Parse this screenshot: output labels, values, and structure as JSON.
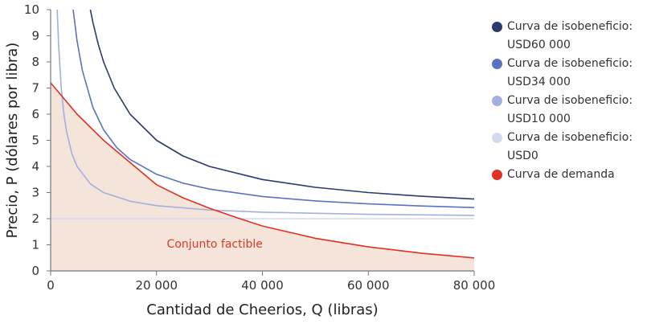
{
  "chart_data": {
    "type": "line",
    "xlabel": "Cantidad de Cheerios, Q (libras)",
    "ylabel": "Precio, P (dólares por libra)",
    "xlim": [
      0,
      80000
    ],
    "ylim": [
      0,
      10
    ],
    "x_ticks": [
      0,
      20000,
      40000,
      60000,
      80000
    ],
    "x_tick_labels": [
      "0",
      "20 000",
      "40 000",
      "60 000",
      "80 000"
    ],
    "y_ticks": [
      0,
      1,
      2,
      3,
      4,
      5,
      6,
      7,
      8,
      9,
      10
    ],
    "y_tick_labels": [
      "0",
      "1",
      "2",
      "3",
      "4",
      "5",
      "6",
      "7",
      "8",
      "9",
      "10"
    ],
    "grid": false,
    "legend_placement": "right",
    "annotation": "Conjunto factible",
    "feasible_fill_color": "#f5e4da",
    "series": [
      {
        "name": "Curva de isobeneficio: USD60 000",
        "legend_lines": [
          "Curva de isobeneficio:",
          "USD60 000"
        ],
        "color": "#2a3a6c",
        "points": [
          [
            7500,
            10
          ],
          [
            8000,
            9.5
          ],
          [
            9000,
            8.667
          ],
          [
            10000,
            8
          ],
          [
            12000,
            7
          ],
          [
            15000,
            6
          ],
          [
            20000,
            5
          ],
          [
            25000,
            4.4
          ],
          [
            30000,
            4
          ],
          [
            40000,
            3.5
          ],
          [
            50000,
            3.2
          ],
          [
            60000,
            3
          ],
          [
            70000,
            2.857
          ],
          [
            80000,
            2.75
          ]
        ]
      },
      {
        "name": "Curva de isobeneficio: USD34 000",
        "legend_lines": [
          "Curva de isobeneficio:",
          "USD34 000"
        ],
        "color": "#5a72c0",
        "points": [
          [
            4250,
            10
          ],
          [
            5000,
            8.8
          ],
          [
            6000,
            7.667
          ],
          [
            8000,
            6.25
          ],
          [
            10000,
            5.4
          ],
          [
            12500,
            4.72
          ],
          [
            15000,
            4.267
          ],
          [
            20000,
            3.7
          ],
          [
            25000,
            3.36
          ],
          [
            30000,
            3.133
          ],
          [
            40000,
            2.85
          ],
          [
            50000,
            2.68
          ],
          [
            60000,
            2.567
          ],
          [
            70000,
            2.486
          ],
          [
            80000,
            2.425
          ]
        ]
      },
      {
        "name": "Curva de isobeneficio: USD10 000",
        "legend_lines": [
          "Curva de isobeneficio:",
          "USD10 000"
        ],
        "color": "#a2b0df",
        "points": [
          [
            1250,
            10
          ],
          [
            1500,
            8.667
          ],
          [
            2000,
            7
          ],
          [
            2500,
            6
          ],
          [
            3000,
            5.333
          ],
          [
            4000,
            4.5
          ],
          [
            5000,
            4
          ],
          [
            7500,
            3.333
          ],
          [
            10000,
            3
          ],
          [
            15000,
            2.667
          ],
          [
            20000,
            2.5
          ],
          [
            30000,
            2.333
          ],
          [
            40000,
            2.25
          ],
          [
            60000,
            2.167
          ],
          [
            80000,
            2.125
          ]
        ]
      },
      {
        "name": "Curva de isobeneficio: USD0",
        "legend_lines": [
          "Curva de isobeneficio:",
          "USD0"
        ],
        "color": "#d3daf0",
        "points": [
          [
            0,
            2
          ],
          [
            80000,
            2
          ]
        ]
      },
      {
        "name": "Curva de demanda",
        "legend_lines": [
          "Curva de demanda"
        ],
        "color": "#e03122",
        "points": [
          [
            0,
            7.2
          ],
          [
            5000,
            6.0
          ],
          [
            10000,
            5.0
          ],
          [
            15000,
            4.15
          ],
          [
            20000,
            3.3
          ],
          [
            25000,
            2.8
          ],
          [
            30000,
            2.4
          ],
          [
            35000,
            2.05
          ],
          [
            40000,
            1.72
          ],
          [
            50000,
            1.25
          ],
          [
            60000,
            0.92
          ],
          [
            70000,
            0.68
          ],
          [
            80000,
            0.5
          ]
        ]
      }
    ]
  }
}
